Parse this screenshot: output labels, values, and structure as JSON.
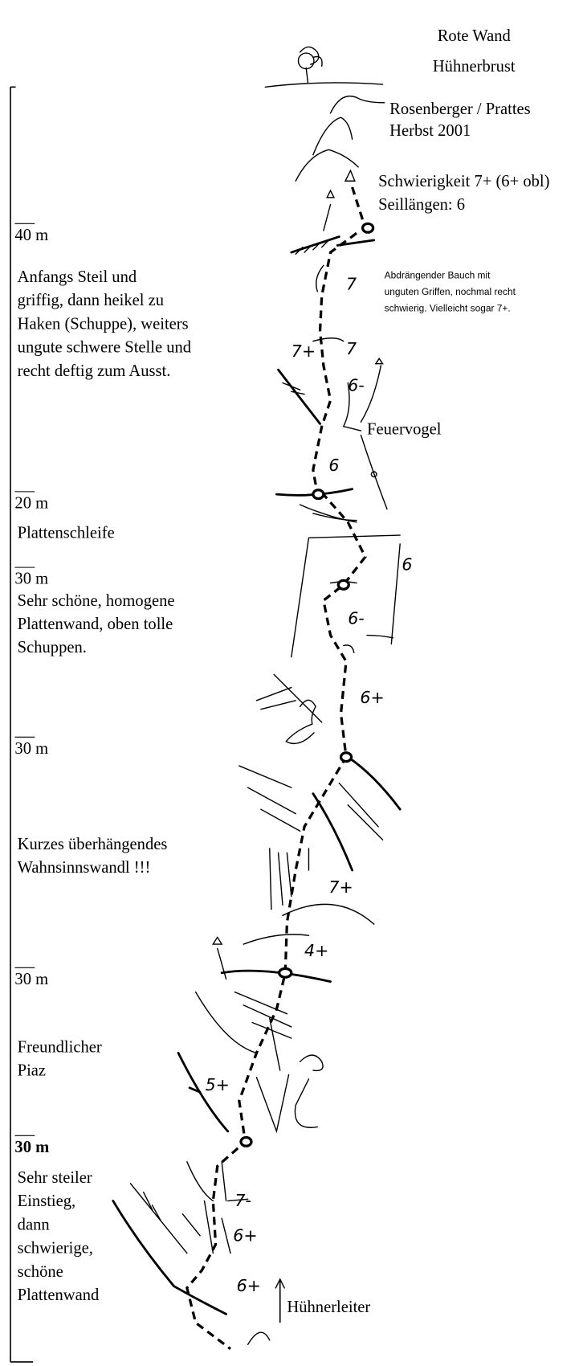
{
  "header": {
    "title": "Rote Wand",
    "subtitle": "Hühnerbrust",
    "authors": "Rosenberger / Prattes",
    "date": "Herbst 2001",
    "difficulty": "Schwierigkeit 7+ (6+ obl)",
    "pitches": "Seillängen: 6"
  },
  "scale_marks": [
    "40 m",
    "20 m",
    "30 m",
    "30 m",
    "30 m",
    "30 m"
  ],
  "descriptions": [
    {
      "lines": [
        "Anfangs Steil und",
        "griffig, dann heikel zu",
        "Haken (Schuppe), weiters",
        "ungute schwere Stelle und",
        "recht deftig zum Ausst."
      ]
    },
    {
      "lines": [
        "Plattenschleife"
      ]
    },
    {
      "lines": [
        "Sehr schöne, homogene",
        "Plattenwand, oben tolle",
        "Schuppen."
      ]
    },
    {
      "lines": [
        "Kurzes überhängendes",
        "Wahnsinnswandl !!!"
      ]
    },
    {
      "lines": [
        "Freundlicher",
        "Piaz"
      ]
    },
    {
      "lines": [
        "Sehr steiler",
        "Einstieg,",
        "dann",
        "schwierige,",
        "schöne",
        "Plattenwand"
      ]
    }
  ],
  "note": {
    "lines": [
      "Abdrängender Bauch mit",
      "unguten Griffen, nochmal recht",
      "schwierig. Vielleicht sogar 7+."
    ]
  },
  "grades": [
    "7",
    "7+",
    "7",
    "6-",
    "6",
    "6",
    "6-",
    "6+",
    "7+",
    "4+",
    "5+",
    "7-",
    "6+",
    "6+"
  ],
  "labels": {
    "feuervogel": "Feuervogel",
    "huehnerleiter": "Hühnerleiter"
  }
}
